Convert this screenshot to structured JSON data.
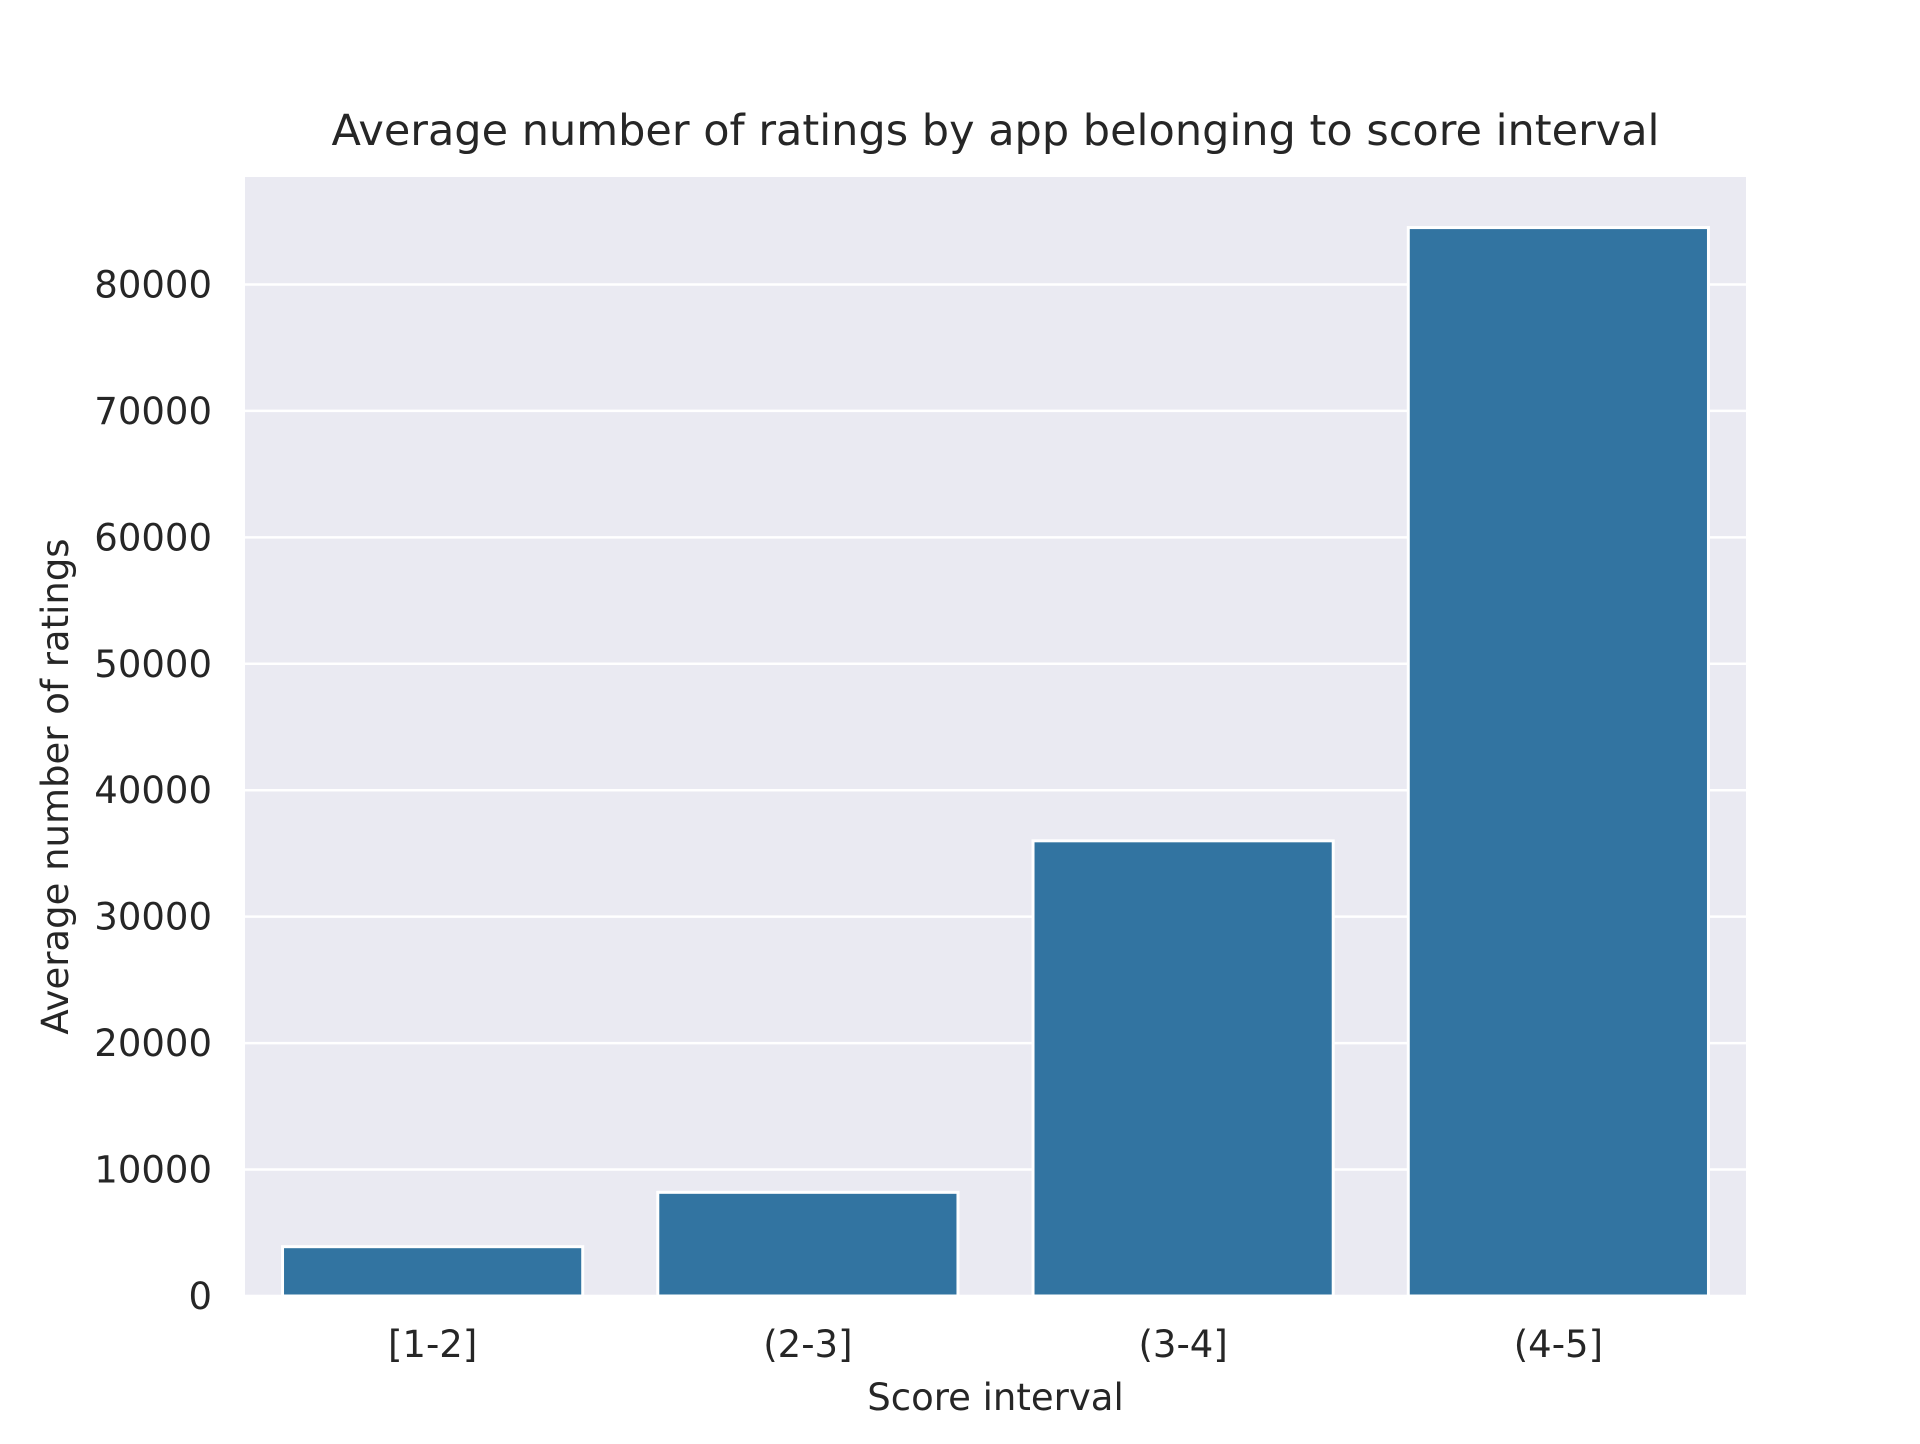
{
  "chart_data": {
    "type": "bar",
    "title": "Average number of ratings by app belonging to score interval",
    "xlabel": "Score interval",
    "ylabel": "Average number of ratings",
    "categories": [
      "[1-2]",
      "(2-3]",
      "(3-4]",
      "(4-5]"
    ],
    "values": [
      3900,
      8200,
      36000,
      84500
    ],
    "ylim": [
      0,
      88500
    ],
    "yticks": [
      0,
      10000,
      20000,
      30000,
      40000,
      50000,
      60000,
      70000,
      80000
    ],
    "grid": true,
    "legend": "none",
    "colors": {
      "bar": "#3274a1",
      "plot_background": "#eaeaf2",
      "grid": "#ffffff",
      "text": "#262626"
    }
  }
}
